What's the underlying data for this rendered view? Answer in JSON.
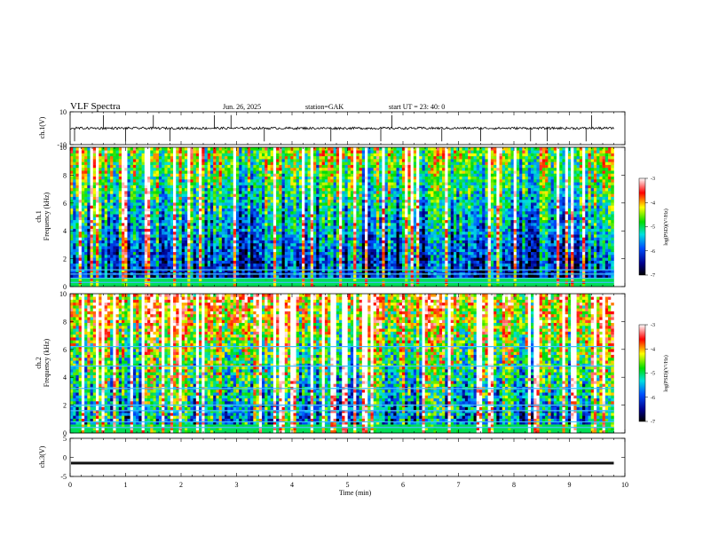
{
  "header": {
    "title": "VLF  Spectra",
    "date": "Jun. 26, 2025",
    "station": "station=GAK",
    "start": "start  UT  =   23: 40: 0"
  },
  "chart_data": [
    {
      "type": "line",
      "panel": "ch1-waveform",
      "ylabel": "ch.1(V)",
      "ylim": [
        -10,
        10
      ],
      "yticks": [
        "10",
        "-10"
      ],
      "xlim": [
        0,
        10
      ],
      "baseline": 0,
      "spike_times": [
        0.08,
        0.6,
        1.0,
        1.5,
        1.8,
        2.6,
        2.9,
        3.5,
        4.7,
        5.6,
        5.8,
        6.7,
        7.4,
        8.3,
        8.6,
        9.3,
        9.4
      ]
    },
    {
      "type": "heatmap",
      "panel": "ch1-spectrogram",
      "ylabel": "ch.1\nFrequency  (kHz)",
      "xlim": [
        0,
        10
      ],
      "ylim": [
        0,
        10
      ],
      "yticks": [
        "0",
        "2",
        "4",
        "6",
        "8",
        "10"
      ],
      "data_end_min": 9.8,
      "colorbar": {
        "label": "log(PSD)(V²/Hz)",
        "ticks": [
          "-3",
          "-4",
          "-5",
          "-6",
          "-7"
        ],
        "range": [
          -7,
          -3
        ]
      },
      "horizontal_lines_khz": [
        0.3,
        0.6,
        0.9,
        1.2
      ]
    },
    {
      "type": "heatmap",
      "panel": "ch2-spectrogram",
      "ylabel": "ch.2\nFrequency  (kHz)",
      "xlim": [
        0,
        10
      ],
      "ylim": [
        0,
        10
      ],
      "yticks": [
        "0",
        "2",
        "4",
        "6",
        "8",
        "10"
      ],
      "data_end_min": 9.8,
      "colorbar": {
        "label": "log(PSD)(V²/Hz)",
        "ticks": [
          "-3",
          "-4",
          "-5",
          "-6",
          "-7"
        ],
        "range": [
          -7,
          -3
        ]
      },
      "horizontal_lines_khz": [
        0.4,
        0.8,
        1.6,
        2.0,
        3.2,
        4.8,
        6.2
      ]
    },
    {
      "type": "line",
      "panel": "ch3-waveform",
      "ylabel": "ch.3(V)",
      "ylim": [
        -5,
        5
      ],
      "yticks": [
        "5",
        "0",
        "-5"
      ],
      "xlim": [
        0,
        10
      ],
      "baseline": -1.5,
      "xlabel": "Time  (min)",
      "xticks": [
        "0",
        "1",
        "2",
        "3",
        "4",
        "5",
        "6",
        "7",
        "8",
        "9",
        "10"
      ]
    }
  ]
}
